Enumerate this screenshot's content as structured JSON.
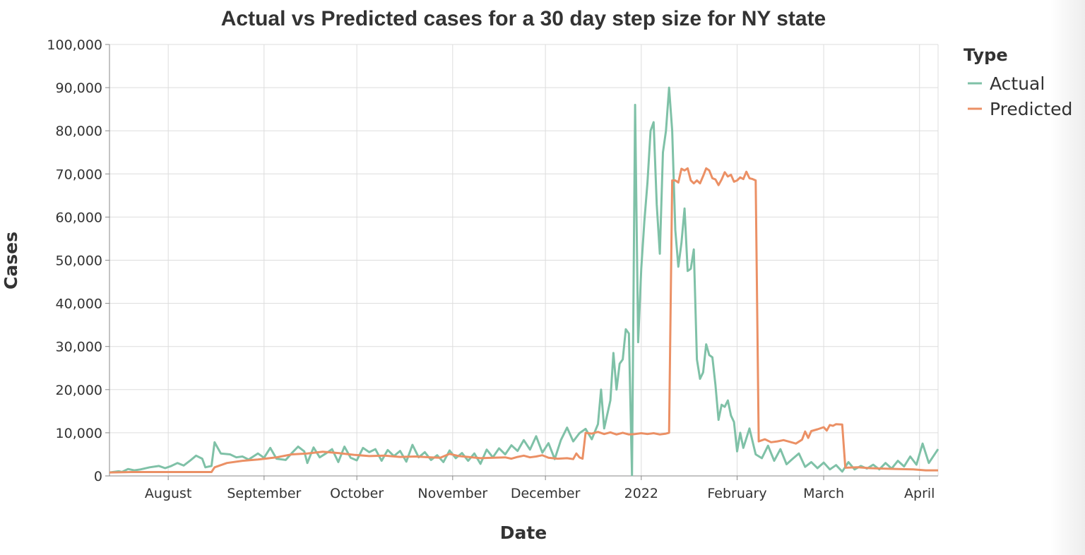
{
  "chart_data": {
    "type": "line",
    "title": "Actual vs Predicted cases for a 30 day step size for NY state",
    "xlabel": "Date",
    "ylabel": "Cases",
    "ylim": [
      0,
      100000
    ],
    "xlim": [
      "2021-07-13",
      "2022-04-07"
    ],
    "y_ticks": [
      0,
      10000,
      20000,
      30000,
      40000,
      50000,
      60000,
      70000,
      80000,
      90000,
      100000
    ],
    "y_tick_labels": [
      "0",
      "10,000",
      "20,000",
      "30,000",
      "40,000",
      "50,000",
      "60,000",
      "70,000",
      "80,000",
      "90,000",
      "100,000"
    ],
    "x_ticks": [
      {
        "date": "2021-08-01",
        "label": "August"
      },
      {
        "date": "2021-09-01",
        "label": "September"
      },
      {
        "date": "2021-10-01",
        "label": "October"
      },
      {
        "date": "2021-11-01",
        "label": "November"
      },
      {
        "date": "2021-12-01",
        "label": "December"
      },
      {
        "date": "2022-01-01",
        "label": "2022"
      },
      {
        "date": "2022-02-01",
        "label": "February"
      },
      {
        "date": "2022-03-01",
        "label": "March"
      },
      {
        "date": "2022-04-01",
        "label": "April"
      }
    ],
    "grid": true,
    "legend": {
      "title": "Type",
      "position": "top-right"
    },
    "series": [
      {
        "name": "Actual",
        "color": "#7fc1a7",
        "points": [
          [
            "2021-07-13",
            800
          ],
          [
            "2021-07-16",
            1100
          ],
          [
            "2021-07-17",
            900
          ],
          [
            "2021-07-19",
            1600
          ],
          [
            "2021-07-21",
            1300
          ],
          [
            "2021-07-23",
            1500
          ],
          [
            "2021-07-26",
            2000
          ],
          [
            "2021-07-29",
            2300
          ],
          [
            "2021-07-31",
            1800
          ],
          [
            "2021-08-02",
            2300
          ],
          [
            "2021-08-04",
            3000
          ],
          [
            "2021-08-06",
            2400
          ],
          [
            "2021-08-08",
            3500
          ],
          [
            "2021-08-10",
            4700
          ],
          [
            "2021-08-12",
            4000
          ],
          [
            "2021-08-13",
            2000
          ],
          [
            "2021-08-15",
            2300
          ],
          [
            "2021-08-16",
            7800
          ],
          [
            "2021-08-18",
            5200
          ],
          [
            "2021-08-21",
            5000
          ],
          [
            "2021-08-23",
            4300
          ],
          [
            "2021-08-25",
            4500
          ],
          [
            "2021-08-27",
            3800
          ],
          [
            "2021-08-30",
            5200
          ],
          [
            "2021-09-01",
            4200
          ],
          [
            "2021-09-03",
            6500
          ],
          [
            "2021-09-05",
            4000
          ],
          [
            "2021-09-08",
            3700
          ],
          [
            "2021-09-10",
            5300
          ],
          [
            "2021-09-12",
            6800
          ],
          [
            "2021-09-14",
            5700
          ],
          [
            "2021-09-15",
            3000
          ],
          [
            "2021-09-17",
            6600
          ],
          [
            "2021-09-19",
            4300
          ],
          [
            "2021-09-21",
            5200
          ],
          [
            "2021-09-23",
            6200
          ],
          [
            "2021-09-25",
            3200
          ],
          [
            "2021-09-27",
            6800
          ],
          [
            "2021-09-29",
            4200
          ],
          [
            "2021-10-01",
            3600
          ],
          [
            "2021-10-03",
            6500
          ],
          [
            "2021-10-05",
            5500
          ],
          [
            "2021-10-07",
            6200
          ],
          [
            "2021-10-09",
            3500
          ],
          [
            "2021-10-11",
            6000
          ],
          [
            "2021-10-13",
            4600
          ],
          [
            "2021-10-15",
            5800
          ],
          [
            "2021-10-17",
            3300
          ],
          [
            "2021-10-19",
            7200
          ],
          [
            "2021-10-21",
            4300
          ],
          [
            "2021-10-23",
            5500
          ],
          [
            "2021-10-25",
            3700
          ],
          [
            "2021-10-27",
            4800
          ],
          [
            "2021-10-29",
            3200
          ],
          [
            "2021-10-31",
            5900
          ],
          [
            "2021-11-02",
            4100
          ],
          [
            "2021-11-04",
            5300
          ],
          [
            "2021-11-06",
            3500
          ],
          [
            "2021-11-08",
            5200
          ],
          [
            "2021-11-10",
            2800
          ],
          [
            "2021-11-12",
            6100
          ],
          [
            "2021-11-14",
            4300
          ],
          [
            "2021-11-16",
            6400
          ],
          [
            "2021-11-18",
            5000
          ],
          [
            "2021-11-20",
            7100
          ],
          [
            "2021-11-22",
            5800
          ],
          [
            "2021-11-24",
            8300
          ],
          [
            "2021-11-26",
            6100
          ],
          [
            "2021-11-28",
            9200
          ],
          [
            "2021-11-30",
            5400
          ],
          [
            "2021-12-02",
            7600
          ],
          [
            "2021-12-04",
            3900
          ],
          [
            "2021-12-06",
            8300
          ],
          [
            "2021-12-08",
            11200
          ],
          [
            "2021-12-10",
            8000
          ],
          [
            "2021-12-12",
            9900
          ],
          [
            "2021-12-14",
            10900
          ],
          [
            "2021-12-16",
            8500
          ],
          [
            "2021-12-18",
            12000
          ],
          [
            "2021-12-19",
            20000
          ],
          [
            "2021-12-20",
            11000
          ],
          [
            "2021-12-22",
            17500
          ],
          [
            "2021-12-23",
            28500
          ],
          [
            "2021-12-24",
            20000
          ],
          [
            "2021-12-25",
            26000
          ],
          [
            "2021-12-26",
            27000
          ],
          [
            "2021-12-27",
            34000
          ],
          [
            "2021-12-28",
            33000
          ],
          [
            "2021-12-29",
            200
          ],
          [
            "2021-12-30",
            86000
          ],
          [
            "2021-12-31",
            31000
          ],
          [
            "2022-01-01",
            48000
          ],
          [
            "2022-01-02",
            59000
          ],
          [
            "2022-01-03",
            68000
          ],
          [
            "2022-01-04",
            80000
          ],
          [
            "2022-01-05",
            82000
          ],
          [
            "2022-01-06",
            63000
          ],
          [
            "2022-01-07",
            51500
          ],
          [
            "2022-01-08",
            75000
          ],
          [
            "2022-01-09",
            80000
          ],
          [
            "2022-01-10",
            90000
          ],
          [
            "2022-01-11",
            80000
          ],
          [
            "2022-01-12",
            57000
          ],
          [
            "2022-01-13",
            48500
          ],
          [
            "2022-01-14",
            54000
          ],
          [
            "2022-01-15",
            62000
          ],
          [
            "2022-01-16",
            47500
          ],
          [
            "2022-01-17",
            48000
          ],
          [
            "2022-01-18",
            52500
          ],
          [
            "2022-01-19",
            27000
          ],
          [
            "2022-01-20",
            22500
          ],
          [
            "2022-01-21",
            24000
          ],
          [
            "2022-01-22",
            30500
          ],
          [
            "2022-01-23",
            28000
          ],
          [
            "2022-01-24",
            27500
          ],
          [
            "2022-01-25",
            21000
          ],
          [
            "2022-01-26",
            13000
          ],
          [
            "2022-01-27",
            16500
          ],
          [
            "2022-01-28",
            16000
          ],
          [
            "2022-01-29",
            17500
          ],
          [
            "2022-01-30",
            14000
          ],
          [
            "2022-01-31",
            12500
          ],
          [
            "2022-02-01",
            5700
          ],
          [
            "2022-02-02",
            10000
          ],
          [
            "2022-02-03",
            6500
          ],
          [
            "2022-02-05",
            11000
          ],
          [
            "2022-02-07",
            5000
          ],
          [
            "2022-02-09",
            4100
          ],
          [
            "2022-02-11",
            7000
          ],
          [
            "2022-02-13",
            3500
          ],
          [
            "2022-02-15",
            6200
          ],
          [
            "2022-02-17",
            2700
          ],
          [
            "2022-02-19",
            4000
          ],
          [
            "2022-02-21",
            5200
          ],
          [
            "2022-02-23",
            2100
          ],
          [
            "2022-02-25",
            3200
          ],
          [
            "2022-02-27",
            1800
          ],
          [
            "2022-03-01",
            3100
          ],
          [
            "2022-03-03",
            1500
          ],
          [
            "2022-03-05",
            2500
          ],
          [
            "2022-03-07",
            1000
          ],
          [
            "2022-03-09",
            3200
          ],
          [
            "2022-03-11",
            1500
          ],
          [
            "2022-03-13",
            2300
          ],
          [
            "2022-03-15",
            1700
          ],
          [
            "2022-03-17",
            2600
          ],
          [
            "2022-03-19",
            1500
          ],
          [
            "2022-03-21",
            3000
          ],
          [
            "2022-03-23",
            1700
          ],
          [
            "2022-03-25",
            3500
          ],
          [
            "2022-03-27",
            2200
          ],
          [
            "2022-03-29",
            4500
          ],
          [
            "2022-03-31",
            2600
          ],
          [
            "2022-04-02",
            7500
          ],
          [
            "2022-04-04",
            3000
          ],
          [
            "2022-04-07",
            6200
          ]
        ]
      },
      {
        "name": "Predicted",
        "color": "#eb9065",
        "points": [
          [
            "2021-07-13",
            800
          ],
          [
            "2021-07-20",
            900
          ],
          [
            "2021-07-31",
            900
          ],
          [
            "2021-08-10",
            900
          ],
          [
            "2021-08-15",
            900
          ],
          [
            "2021-08-16",
            2000
          ],
          [
            "2021-08-20",
            3000
          ],
          [
            "2021-08-25",
            3500
          ],
          [
            "2021-08-30",
            3800
          ],
          [
            "2021-09-05",
            4300
          ],
          [
            "2021-09-10",
            5000
          ],
          [
            "2021-09-15",
            5200
          ],
          [
            "2021-09-20",
            5600
          ],
          [
            "2021-09-25",
            5300
          ],
          [
            "2021-09-30",
            4900
          ],
          [
            "2021-10-05",
            4600
          ],
          [
            "2021-10-10",
            4700
          ],
          [
            "2021-10-15",
            4400
          ],
          [
            "2021-10-20",
            4500
          ],
          [
            "2021-10-25",
            4300
          ],
          [
            "2021-10-28",
            4200
          ],
          [
            "2021-10-31",
            5100
          ],
          [
            "2021-11-03",
            4600
          ],
          [
            "2021-11-06",
            4400
          ],
          [
            "2021-11-10",
            4100
          ],
          [
            "2021-11-14",
            4200
          ],
          [
            "2021-11-18",
            4300
          ],
          [
            "2021-11-20",
            4000
          ],
          [
            "2021-11-22",
            4400
          ],
          [
            "2021-11-24",
            4700
          ],
          [
            "2021-11-26",
            4300
          ],
          [
            "2021-11-28",
            4500
          ],
          [
            "2021-11-30",
            4800
          ],
          [
            "2021-12-02",
            4200
          ],
          [
            "2021-12-05",
            4000
          ],
          [
            "2021-12-08",
            4100
          ],
          [
            "2021-12-10",
            3900
          ],
          [
            "2021-12-11",
            5200
          ],
          [
            "2021-12-12",
            4300
          ],
          [
            "2021-12-13",
            4000
          ],
          [
            "2021-12-14",
            10000
          ],
          [
            "2021-12-16",
            9800
          ],
          [
            "2021-12-18",
            10200
          ],
          [
            "2021-12-20",
            9700
          ],
          [
            "2021-12-22",
            10100
          ],
          [
            "2021-12-24",
            9600
          ],
          [
            "2021-12-26",
            10000
          ],
          [
            "2021-12-28",
            9600
          ],
          [
            "2021-12-30",
            9700
          ],
          [
            "2022-01-01",
            9900
          ],
          [
            "2022-01-03",
            9700
          ],
          [
            "2022-01-05",
            9900
          ],
          [
            "2022-01-07",
            9600
          ],
          [
            "2022-01-09",
            9800
          ],
          [
            "2022-01-10",
            10000
          ],
          [
            "2022-01-11",
            68500
          ],
          [
            "2022-01-12",
            68500
          ],
          [
            "2022-01-13",
            68000
          ],
          [
            "2022-01-14",
            71200
          ],
          [
            "2022-01-15",
            70800
          ],
          [
            "2022-01-16",
            71300
          ],
          [
            "2022-01-17",
            68500
          ],
          [
            "2022-01-18",
            67800
          ],
          [
            "2022-01-19",
            68500
          ],
          [
            "2022-01-20",
            67800
          ],
          [
            "2022-01-21",
            69500
          ],
          [
            "2022-01-22",
            71300
          ],
          [
            "2022-01-23",
            70800
          ],
          [
            "2022-01-24",
            69000
          ],
          [
            "2022-01-25",
            68700
          ],
          [
            "2022-01-26",
            67400
          ],
          [
            "2022-01-27",
            68700
          ],
          [
            "2022-01-28",
            70400
          ],
          [
            "2022-01-29",
            69400
          ],
          [
            "2022-01-30",
            69800
          ],
          [
            "2022-01-31",
            68200
          ],
          [
            "2022-02-01",
            68500
          ],
          [
            "2022-02-02",
            69200
          ],
          [
            "2022-02-03",
            68800
          ],
          [
            "2022-02-04",
            70500
          ],
          [
            "2022-02-05",
            69000
          ],
          [
            "2022-02-06",
            68800
          ],
          [
            "2022-02-07",
            68500
          ],
          [
            "2022-02-08",
            8000
          ],
          [
            "2022-02-10",
            8500
          ],
          [
            "2022-02-12",
            7800
          ],
          [
            "2022-02-14",
            8000
          ],
          [
            "2022-02-16",
            8300
          ],
          [
            "2022-02-18",
            7900
          ],
          [
            "2022-02-20",
            7500
          ],
          [
            "2022-02-22",
            8400
          ],
          [
            "2022-02-23",
            10300
          ],
          [
            "2022-02-24",
            8800
          ],
          [
            "2022-02-25",
            10400
          ],
          [
            "2022-02-27",
            10800
          ],
          [
            "2022-03-01",
            11300
          ],
          [
            "2022-03-02",
            10500
          ],
          [
            "2022-03-03",
            11800
          ],
          [
            "2022-03-04",
            11600
          ],
          [
            "2022-03-05",
            12000
          ],
          [
            "2022-03-07",
            11900
          ],
          [
            "2022-03-08",
            1900
          ],
          [
            "2022-03-12",
            2000
          ],
          [
            "2022-03-16",
            1800
          ],
          [
            "2022-03-20",
            1700
          ],
          [
            "2022-03-25",
            1600
          ],
          [
            "2022-03-30",
            1500
          ],
          [
            "2022-04-03",
            1300
          ],
          [
            "2022-04-07",
            1300
          ]
        ]
      }
    ]
  }
}
